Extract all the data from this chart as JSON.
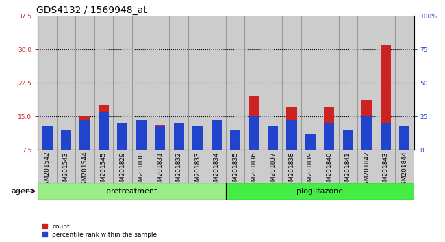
{
  "title": "GDS4132 / 1569948_at",
  "samples": [
    "GSM201542",
    "GSM201543",
    "GSM201544",
    "GSM201545",
    "GSM201829",
    "GSM201830",
    "GSM201831",
    "GSM201832",
    "GSM201833",
    "GSM201834",
    "GSM201835",
    "GSM201836",
    "GSM201837",
    "GSM201838",
    "GSM201839",
    "GSM201840",
    "GSM201841",
    "GSM201842",
    "GSM201843",
    "GSM201844"
  ],
  "count_values": [
    12.0,
    11.5,
    15.0,
    17.5,
    13.5,
    14.0,
    13.0,
    13.5,
    12.5,
    13.0,
    9.5,
    19.5,
    12.5,
    17.0,
    10.5,
    17.0,
    11.0,
    18.5,
    31.0,
    11.5
  ],
  "percentile_values": [
    18,
    15,
    22,
    28,
    20,
    22,
    18,
    20,
    18,
    22,
    15,
    25,
    18,
    22,
    12,
    20,
    15,
    25,
    20,
    18
  ],
  "pretreatment_count": 10,
  "pioglitazone_count": 10,
  "pretreatment_label": "pretreatment",
  "pioglitazone_label": "pioglitazone",
  "agent_label": "agent",
  "ylim_left": [
    7.5,
    37.5
  ],
  "ylim_right": [
    0,
    100
  ],
  "yticks_left": [
    7.5,
    15.0,
    22.5,
    30.0,
    37.5
  ],
  "yticks_right": [
    0,
    25,
    50,
    75,
    100
  ],
  "ytick_labels_right": [
    "0",
    "25",
    "50",
    "75",
    "100%"
  ],
  "bar_color_red": "#cc2222",
  "bar_color_blue": "#2244cc",
  "col_bg_color": "#cccccc",
  "plot_bg_color": "#ffffff",
  "bg_color_pretreatment": "#99ee88",
  "bg_color_pioglitazone": "#44ee44",
  "grid_color": "black",
  "title_fontsize": 10,
  "tick_fontsize": 6.5,
  "label_fontsize": 8,
  "agent_fontsize": 8
}
